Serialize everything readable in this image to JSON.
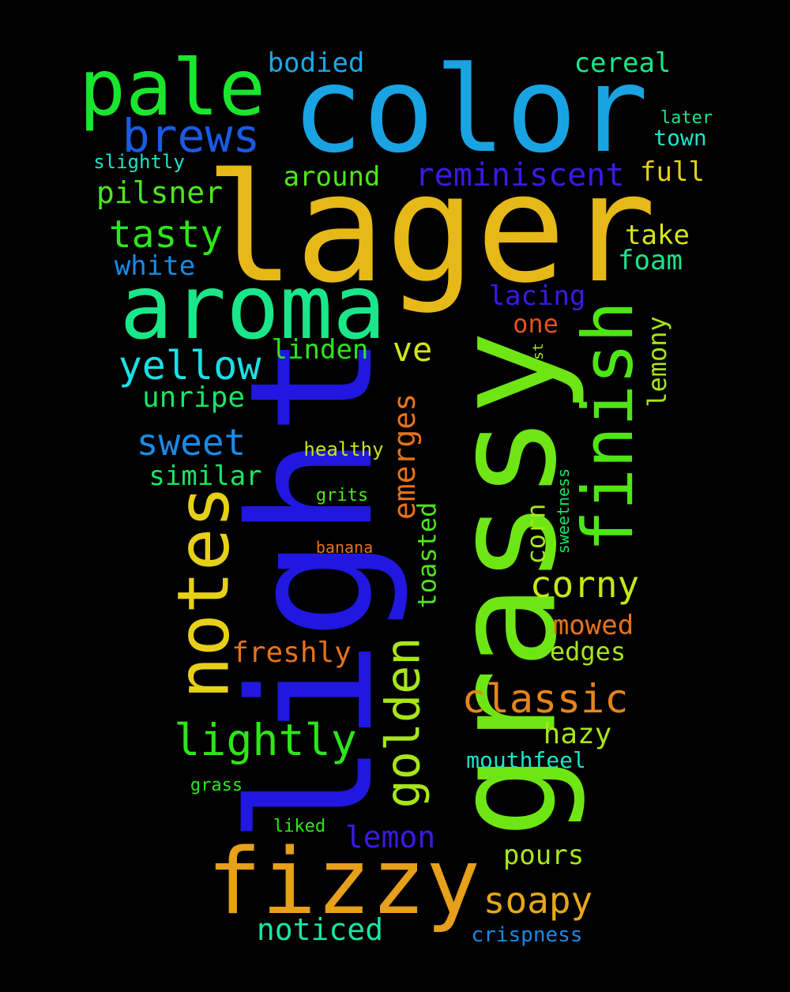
{
  "words": [
    {
      "text": "lager",
      "color": "#e6b918",
      "vertical": false
    },
    {
      "text": "light",
      "color": "#2018e0",
      "vertical": true
    },
    {
      "text": "grassy",
      "color": "#6ee614",
      "vertical": true
    },
    {
      "text": "color",
      "color": "#1aa3e3",
      "vertical": false
    },
    {
      "text": "fizzy",
      "color": "#e6a019",
      "vertical": false
    },
    {
      "text": "aroma",
      "color": "#1ae68a",
      "vertical": false
    },
    {
      "text": "pale",
      "color": "#1ae62e",
      "vertical": false
    },
    {
      "text": "notes",
      "color": "#e6d018",
      "vertical": true
    },
    {
      "text": "finish",
      "color": "#4ee614",
      "vertical": true
    },
    {
      "text": "golden",
      "color": "#a8e619",
      "vertical": true
    },
    {
      "text": "brews",
      "color": "#1a5ae6",
      "vertical": false
    },
    {
      "text": "lightly",
      "color": "#2ee61a",
      "vertical": false
    },
    {
      "text": "classic",
      "color": "#e6851a",
      "vertical": false
    },
    {
      "text": "yellow",
      "color": "#1ae0e6",
      "vertical": false
    },
    {
      "text": "tasty",
      "color": "#2ee61a",
      "vertical": false
    },
    {
      "text": "corny",
      "color": "#c6e618",
      "vertical": false
    },
    {
      "text": "soapy",
      "color": "#e6a818",
      "vertical": false
    },
    {
      "text": "sweet",
      "color": "#1a8ae6",
      "vertical": false
    },
    {
      "text": "reminiscent",
      "color": "#3a1ae6",
      "vertical": false
    },
    {
      "text": "ve",
      "color": "#d6e618",
      "vertical": false
    },
    {
      "text": "pilsner",
      "color": "#4ee61a",
      "vertical": false
    },
    {
      "text": "noticed",
      "color": "#1ae6a6",
      "vertical": false
    },
    {
      "text": "emerges",
      "color": "#e6731a",
      "vertical": true
    },
    {
      "text": "lemon",
      "color": "#3a1ae6",
      "vertical": false
    },
    {
      "text": "bodied",
      "color": "#1aa8e6",
      "vertical": false
    },
    {
      "text": "cereal",
      "color": "#1ae68a",
      "vertical": false
    },
    {
      "text": "around",
      "color": "#4ee61a",
      "vertical": false
    },
    {
      "text": "unripe",
      "color": "#1ae662",
      "vertical": false
    },
    {
      "text": "similar",
      "color": "#1ae662",
      "vertical": false
    },
    {
      "text": "linden",
      "color": "#2ee61a",
      "vertical": false
    },
    {
      "text": "white",
      "color": "#1a8ae6",
      "vertical": false
    },
    {
      "text": "full",
      "color": "#e6d018",
      "vertical": false
    },
    {
      "text": "take",
      "color": "#d6e618",
      "vertical": false
    },
    {
      "text": "foam",
      "color": "#1ae68a",
      "vertical": false
    },
    {
      "text": "lacing",
      "color": "#3a1ae6",
      "vertical": false
    },
    {
      "text": "one",
      "color": "#e6521a",
      "vertical": false
    },
    {
      "text": "lemony",
      "color": "#a8e619",
      "vertical": true
    },
    {
      "text": "toasted",
      "color": "#4ee61a",
      "vertical": true
    },
    {
      "text": "corn",
      "color": "#a8e619",
      "vertical": true
    },
    {
      "text": "freshly",
      "color": "#e6731a",
      "vertical": false
    },
    {
      "text": "mowed",
      "color": "#e6731a",
      "vertical": false
    },
    {
      "text": "edges",
      "color": "#a8e619",
      "vertical": false
    },
    {
      "text": "hazy",
      "color": "#a8e619",
      "vertical": false
    },
    {
      "text": "mouthfeel",
      "color": "#1ae6c8",
      "vertical": false
    },
    {
      "text": "pours",
      "color": "#a8e619",
      "vertical": false
    },
    {
      "text": "crispness",
      "color": "#1a8ae6",
      "vertical": false
    },
    {
      "text": "town",
      "color": "#1ae6c8",
      "vertical": false
    },
    {
      "text": "later",
      "color": "#1ae68a",
      "vertical": false
    },
    {
      "text": "slightly",
      "color": "#1ae6c8",
      "vertical": false
    },
    {
      "text": "healthy",
      "color": "#c6e618",
      "vertical": false
    },
    {
      "text": "grits",
      "color": "#4ee61a",
      "vertical": false
    },
    {
      "text": "banana",
      "color": "#e6731a",
      "vertical": false
    },
    {
      "text": "sweetness",
      "color": "#1ae662",
      "vertical": true
    },
    {
      "text": "st",
      "color": "#a8e619",
      "vertical": true
    },
    {
      "text": "grass",
      "color": "#2ee61a",
      "vertical": false
    },
    {
      "text": "liked",
      "color": "#2ee61a",
      "vertical": false
    }
  ]
}
